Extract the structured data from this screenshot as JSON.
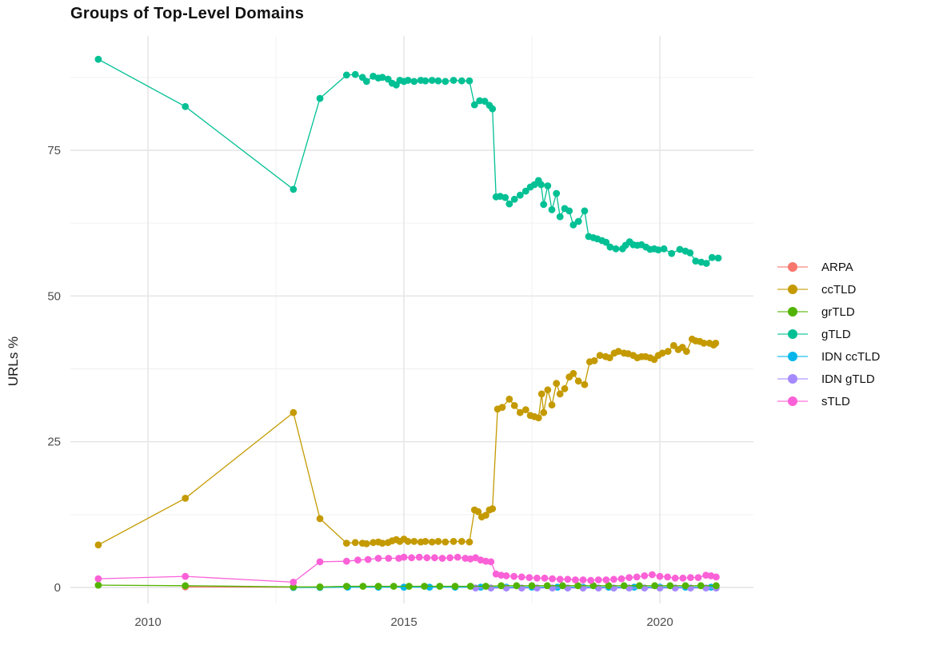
{
  "figure": {
    "title": "Groups of Top-Level Domains",
    "background_color": "#FFFFFF"
  },
  "legend": {
    "items": [
      {
        "label": "ARPA",
        "color": "#F8766D"
      },
      {
        "label": "ccTLD",
        "color": "#C49A00"
      },
      {
        "label": "grTLD",
        "color": "#53B400"
      },
      {
        "label": "gTLD",
        "color": "#00C094"
      },
      {
        "label": "IDN ccTLD",
        "color": "#00B6EB"
      },
      {
        "label": "IDN gTLD",
        "color": "#A58AFF"
      },
      {
        "label": "sTLD",
        "color": "#FB61D7"
      }
    ]
  },
  "chart_data": {
    "type": "line",
    "title": "Groups of Top-Level Domains",
    "xlabel": "",
    "ylabel": "URLs %",
    "xlim": [
      2008.5,
      2021.8
    ],
    "ylim": [
      -2.7,
      94.5
    ],
    "x_ticks": [
      2010,
      2015,
      2020
    ],
    "x_tick_labels": [
      "2010",
      "2015",
      "2020"
    ],
    "x_minor_ticks": [
      2012.5,
      2017.5
    ],
    "y_ticks": [
      0,
      25,
      50,
      75
    ],
    "y_tick_labels": [
      "0",
      "25",
      "50",
      "75"
    ],
    "y_minor_ticks": [
      12.5,
      37.5,
      62.5,
      87.5
    ],
    "grid": true,
    "legend_position": "right",
    "colors": {
      "grid_major": "#E4E4E4",
      "grid_minor": "#F0F0F0",
      "tick_text": "#4D4D4D"
    },
    "series": [
      {
        "name": "ARPA",
        "color": "#F8766D",
        "z": 1,
        "points": [
          [
            2010.73,
            0.1
          ],
          [
            2012.84,
            0.05
          ],
          [
            2013.36,
            0.05
          ]
        ]
      },
      {
        "name": "ccTLD",
        "color": "#C49A00",
        "z": 5,
        "points": [
          [
            2009.03,
            7.3
          ],
          [
            2010.73,
            15.3
          ],
          [
            2012.84,
            30.0
          ],
          [
            2013.36,
            11.8
          ],
          [
            2013.88,
            7.6
          ],
          [
            2014.05,
            7.7
          ],
          [
            2014.19,
            7.6
          ],
          [
            2014.27,
            7.5
          ],
          [
            2014.4,
            7.7
          ],
          [
            2014.5,
            7.8
          ],
          [
            2014.58,
            7.6
          ],
          [
            2014.69,
            7.7
          ],
          [
            2014.77,
            8.0
          ],
          [
            2014.85,
            8.2
          ],
          [
            2014.92,
            7.9
          ],
          [
            2015.0,
            8.3
          ],
          [
            2015.08,
            7.9
          ],
          [
            2015.2,
            7.9
          ],
          [
            2015.33,
            7.8
          ],
          [
            2015.42,
            7.9
          ],
          [
            2015.55,
            7.8
          ],
          [
            2015.67,
            7.9
          ],
          [
            2015.81,
            7.8
          ],
          [
            2015.97,
            7.9
          ],
          [
            2016.13,
            7.9
          ],
          [
            2016.28,
            7.8
          ],
          [
            2016.38,
            13.3
          ],
          [
            2016.45,
            13.0
          ],
          [
            2016.52,
            12.1
          ],
          [
            2016.6,
            12.4
          ],
          [
            2016.67,
            13.3
          ],
          [
            2016.73,
            13.5
          ],
          [
            2016.83,
            30.6
          ],
          [
            2016.92,
            30.9
          ],
          [
            2017.06,
            32.3
          ],
          [
            2017.16,
            31.2
          ],
          [
            2017.27,
            30.0
          ],
          [
            2017.38,
            30.5
          ],
          [
            2017.47,
            29.5
          ],
          [
            2017.55,
            29.3
          ],
          [
            2017.63,
            29.1
          ],
          [
            2017.69,
            33.2
          ],
          [
            2017.73,
            30.0
          ],
          [
            2017.81,
            33.9
          ],
          [
            2017.89,
            31.3
          ],
          [
            2017.98,
            35.0
          ],
          [
            2018.05,
            33.2
          ],
          [
            2018.14,
            34.1
          ],
          [
            2018.23,
            36.1
          ],
          [
            2018.31,
            36.7
          ],
          [
            2018.41,
            35.4
          ],
          [
            2018.53,
            34.8
          ],
          [
            2018.63,
            38.7
          ],
          [
            2018.72,
            38.9
          ],
          [
            2018.83,
            39.8
          ],
          [
            2018.94,
            39.6
          ],
          [
            2019.02,
            39.4
          ],
          [
            2019.11,
            40.2
          ],
          [
            2019.19,
            40.5
          ],
          [
            2019.3,
            40.2
          ],
          [
            2019.38,
            40.1
          ],
          [
            2019.48,
            39.8
          ],
          [
            2019.56,
            39.4
          ],
          [
            2019.64,
            39.6
          ],
          [
            2019.72,
            39.6
          ],
          [
            2019.81,
            39.4
          ],
          [
            2019.89,
            39.1
          ],
          [
            2019.97,
            39.8
          ],
          [
            2020.05,
            40.2
          ],
          [
            2020.16,
            40.5
          ],
          [
            2020.27,
            41.5
          ],
          [
            2020.36,
            40.8
          ],
          [
            2020.44,
            41.2
          ],
          [
            2020.52,
            40.5
          ],
          [
            2020.63,
            42.6
          ],
          [
            2020.7,
            42.3
          ],
          [
            2020.78,
            42.2
          ],
          [
            2020.86,
            41.9
          ],
          [
            2020.97,
            41.9
          ],
          [
            2021.05,
            41.6
          ],
          [
            2021.09,
            41.9
          ]
        ]
      },
      {
        "name": "grTLD",
        "color": "#53B400",
        "z": 4,
        "points": [
          [
            2009.03,
            0.4
          ],
          [
            2010.73,
            0.3
          ],
          [
            2012.84,
            0.1
          ],
          [
            2013.36,
            0.1
          ],
          [
            2013.88,
            0.2
          ],
          [
            2014.2,
            0.2
          ],
          [
            2014.5,
            0.2
          ],
          [
            2014.8,
            0.2
          ],
          [
            2015.1,
            0.2
          ],
          [
            2015.4,
            0.2
          ],
          [
            2015.7,
            0.2
          ],
          [
            2016.0,
            0.2
          ],
          [
            2016.3,
            0.2
          ],
          [
            2016.6,
            0.2
          ],
          [
            2016.9,
            0.3
          ],
          [
            2017.2,
            0.3
          ],
          [
            2017.5,
            0.3
          ],
          [
            2017.8,
            0.3
          ],
          [
            2018.1,
            0.3
          ],
          [
            2018.4,
            0.3
          ],
          [
            2018.7,
            0.3
          ],
          [
            2019.0,
            0.3
          ],
          [
            2019.3,
            0.3
          ],
          [
            2019.6,
            0.3
          ],
          [
            2019.9,
            0.3
          ],
          [
            2020.2,
            0.3
          ],
          [
            2020.5,
            0.3
          ],
          [
            2020.8,
            0.3
          ],
          [
            2021.1,
            0.3
          ]
        ]
      },
      {
        "name": "gTLD",
        "color": "#00C094",
        "z": 6,
        "points": [
          [
            2009.03,
            90.6
          ],
          [
            2010.73,
            82.5
          ],
          [
            2012.84,
            68.3
          ],
          [
            2013.36,
            83.9
          ],
          [
            2013.88,
            87.9
          ],
          [
            2014.05,
            88.0
          ],
          [
            2014.19,
            87.5
          ],
          [
            2014.27,
            86.8
          ],
          [
            2014.4,
            87.7
          ],
          [
            2014.5,
            87.4
          ],
          [
            2014.58,
            87.5
          ],
          [
            2014.69,
            87.2
          ],
          [
            2014.77,
            86.5
          ],
          [
            2014.85,
            86.2
          ],
          [
            2014.92,
            87.0
          ],
          [
            2015.0,
            86.8
          ],
          [
            2015.08,
            87.0
          ],
          [
            2015.2,
            86.8
          ],
          [
            2015.33,
            87.0
          ],
          [
            2015.42,
            86.9
          ],
          [
            2015.55,
            87.0
          ],
          [
            2015.67,
            86.9
          ],
          [
            2015.81,
            86.8
          ],
          [
            2015.97,
            87.0
          ],
          [
            2016.13,
            86.9
          ],
          [
            2016.28,
            86.9
          ],
          [
            2016.38,
            82.8
          ],
          [
            2016.48,
            83.5
          ],
          [
            2016.58,
            83.4
          ],
          [
            2016.67,
            82.7
          ],
          [
            2016.73,
            82.1
          ],
          [
            2016.8,
            67.0
          ],
          [
            2016.88,
            67.1
          ],
          [
            2016.98,
            66.9
          ],
          [
            2017.06,
            65.8
          ],
          [
            2017.16,
            66.6
          ],
          [
            2017.27,
            67.3
          ],
          [
            2017.38,
            68.0
          ],
          [
            2017.47,
            68.7
          ],
          [
            2017.55,
            69.1
          ],
          [
            2017.63,
            69.8
          ],
          [
            2017.68,
            69.1
          ],
          [
            2017.73,
            65.7
          ],
          [
            2017.81,
            68.9
          ],
          [
            2017.89,
            64.8
          ],
          [
            2017.98,
            67.6
          ],
          [
            2018.05,
            63.6
          ],
          [
            2018.14,
            65.0
          ],
          [
            2018.23,
            64.6
          ],
          [
            2018.31,
            62.2
          ],
          [
            2018.41,
            62.8
          ],
          [
            2018.53,
            64.6
          ],
          [
            2018.61,
            60.2
          ],
          [
            2018.7,
            60.0
          ],
          [
            2018.78,
            59.8
          ],
          [
            2018.87,
            59.5
          ],
          [
            2018.95,
            59.2
          ],
          [
            2019.03,
            58.4
          ],
          [
            2019.14,
            58.1
          ],
          [
            2019.27,
            58.1
          ],
          [
            2019.33,
            58.7
          ],
          [
            2019.41,
            59.3
          ],
          [
            2019.48,
            58.8
          ],
          [
            2019.56,
            58.7
          ],
          [
            2019.64,
            58.8
          ],
          [
            2019.73,
            58.4
          ],
          [
            2019.81,
            58.0
          ],
          [
            2019.89,
            58.1
          ],
          [
            2019.97,
            57.9
          ],
          [
            2020.08,
            58.1
          ],
          [
            2020.23,
            57.3
          ],
          [
            2020.39,
            58.0
          ],
          [
            2020.5,
            57.7
          ],
          [
            2020.59,
            57.4
          ],
          [
            2020.7,
            56.0
          ],
          [
            2020.81,
            55.8
          ],
          [
            2020.91,
            55.6
          ],
          [
            2021.02,
            56.6
          ],
          [
            2021.14,
            56.5
          ]
        ]
      },
      {
        "name": "IDN ccTLD",
        "color": "#00B6EB",
        "z": 2,
        "points": [
          [
            2012.84,
            0.0
          ],
          [
            2013.36,
            0.0
          ],
          [
            2013.9,
            0.05
          ],
          [
            2014.5,
            0.05
          ],
          [
            2015.0,
            0.05
          ],
          [
            2015.5,
            0.05
          ],
          [
            2016.0,
            0.05
          ],
          [
            2016.5,
            0.05
          ],
          [
            2017.0,
            0.05
          ],
          [
            2017.5,
            0.05
          ],
          [
            2018.0,
            0.05
          ],
          [
            2018.5,
            0.05
          ],
          [
            2019.0,
            0.05
          ],
          [
            2019.5,
            0.05
          ],
          [
            2020.0,
            0.05
          ],
          [
            2020.5,
            0.05
          ],
          [
            2021.0,
            0.05
          ]
        ]
      },
      {
        "name": "IDN gTLD",
        "color": "#A58AFF",
        "z": 3,
        "points": [
          [
            2016.4,
            -0.1
          ],
          [
            2016.7,
            -0.1
          ],
          [
            2017.0,
            -0.1
          ],
          [
            2017.3,
            -0.1
          ],
          [
            2017.6,
            -0.1
          ],
          [
            2017.9,
            -0.1
          ],
          [
            2018.2,
            -0.1
          ],
          [
            2018.5,
            -0.1
          ],
          [
            2018.8,
            -0.1
          ],
          [
            2019.1,
            -0.1
          ],
          [
            2019.4,
            -0.1
          ],
          [
            2019.7,
            -0.1
          ],
          [
            2020.0,
            -0.1
          ],
          [
            2020.3,
            -0.1
          ],
          [
            2020.6,
            -0.1
          ],
          [
            2020.9,
            -0.1
          ],
          [
            2021.1,
            -0.1
          ]
        ]
      },
      {
        "name": "sTLD",
        "color": "#FB61D7",
        "z": 7,
        "points": [
          [
            2009.03,
            1.5
          ],
          [
            2010.73,
            1.9
          ],
          [
            2012.84,
            0.9
          ],
          [
            2013.36,
            4.4
          ],
          [
            2013.88,
            4.5
          ],
          [
            2014.1,
            4.7
          ],
          [
            2014.3,
            4.8
          ],
          [
            2014.5,
            5.0
          ],
          [
            2014.7,
            5.0
          ],
          [
            2014.9,
            5.0
          ],
          [
            2015.0,
            5.2
          ],
          [
            2015.15,
            5.1
          ],
          [
            2015.3,
            5.2
          ],
          [
            2015.45,
            5.1
          ],
          [
            2015.6,
            5.1
          ],
          [
            2015.75,
            5.0
          ],
          [
            2015.9,
            5.1
          ],
          [
            2016.05,
            5.2
          ],
          [
            2016.2,
            5.0
          ],
          [
            2016.3,
            4.9
          ],
          [
            2016.4,
            5.1
          ],
          [
            2016.5,
            4.7
          ],
          [
            2016.6,
            4.5
          ],
          [
            2016.7,
            4.4
          ],
          [
            2016.8,
            2.3
          ],
          [
            2016.9,
            2.1
          ],
          [
            2017.0,
            2.0
          ],
          [
            2017.15,
            1.9
          ],
          [
            2017.3,
            1.8
          ],
          [
            2017.45,
            1.7
          ],
          [
            2017.6,
            1.6
          ],
          [
            2017.75,
            1.6
          ],
          [
            2017.9,
            1.5
          ],
          [
            2018.05,
            1.4
          ],
          [
            2018.2,
            1.4
          ],
          [
            2018.35,
            1.3
          ],
          [
            2018.5,
            1.3
          ],
          [
            2018.65,
            1.2
          ],
          [
            2018.8,
            1.3
          ],
          [
            2018.95,
            1.3
          ],
          [
            2019.1,
            1.4
          ],
          [
            2019.25,
            1.5
          ],
          [
            2019.4,
            1.7
          ],
          [
            2019.55,
            1.8
          ],
          [
            2019.7,
            2.0
          ],
          [
            2019.85,
            2.2
          ],
          [
            2020.0,
            1.9
          ],
          [
            2020.15,
            1.8
          ],
          [
            2020.3,
            1.6
          ],
          [
            2020.45,
            1.6
          ],
          [
            2020.6,
            1.7
          ],
          [
            2020.75,
            1.7
          ],
          [
            2020.9,
            2.1
          ],
          [
            2021.0,
            2.0
          ],
          [
            2021.1,
            1.8
          ]
        ]
      }
    ]
  }
}
